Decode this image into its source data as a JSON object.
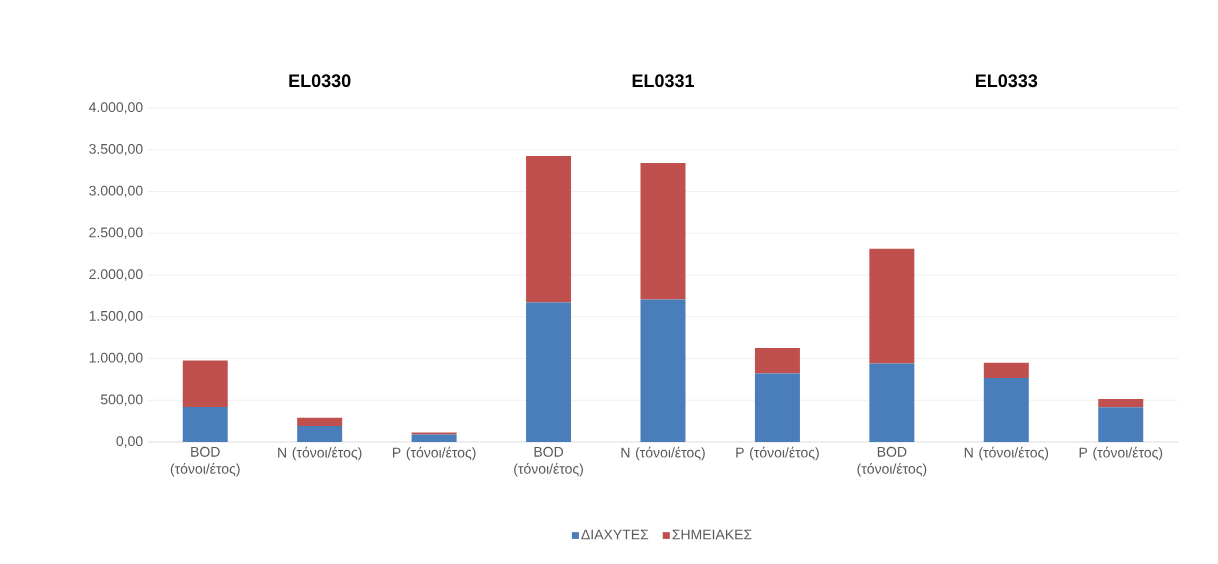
{
  "chart_data": {
    "type": "bar",
    "stacked": true,
    "categories": [
      "BOD (τόνοι/έτος)",
      "N (τόνοι/έτος)",
      "P (τόνοι/έτος)",
      "BOD (τόνοι/έτος)",
      "N (τόνοι/έτος)",
      "P (τόνοι/έτος)",
      "BOD (τόνοι/έτος)",
      "N (τόνοι/έτος)",
      "P (τόνοι/έτος)"
    ],
    "series": [
      {
        "name": "ΔΙΑΧΥΤΕΣ",
        "color": "#4a7ebb",
        "values": [
          420,
          190,
          90,
          1670,
          1705,
          820,
          940,
          765,
          415
        ]
      },
      {
        "name": "ΣΗΜΕΙΑΚΕΣ",
        "color": "#c0504d",
        "values": [
          555,
          100,
          25,
          1755,
          1635,
          305,
          1375,
          185,
          100
        ]
      }
    ],
    "annotations": [
      "EL0330",
      "EL0331",
      "EL0333"
    ],
    "ylim": [
      0,
      4000
    ],
    "yticks": [
      {
        "value": 0,
        "label": "0,00"
      },
      {
        "value": 500,
        "label": "500,00"
      },
      {
        "value": 1000,
        "label": "1.000,00"
      },
      {
        "value": 1500,
        "label": "1.500,00"
      },
      {
        "value": 2000,
        "label": "2.000,00"
      },
      {
        "value": 2500,
        "label": "2.500,00"
      },
      {
        "value": 3000,
        "label": "3.000,00"
      },
      {
        "value": 3500,
        "label": "3.500,00"
      },
      {
        "value": 4000,
        "label": "4.000,00"
      }
    ],
    "grid": "y",
    "legend": "bottom"
  }
}
